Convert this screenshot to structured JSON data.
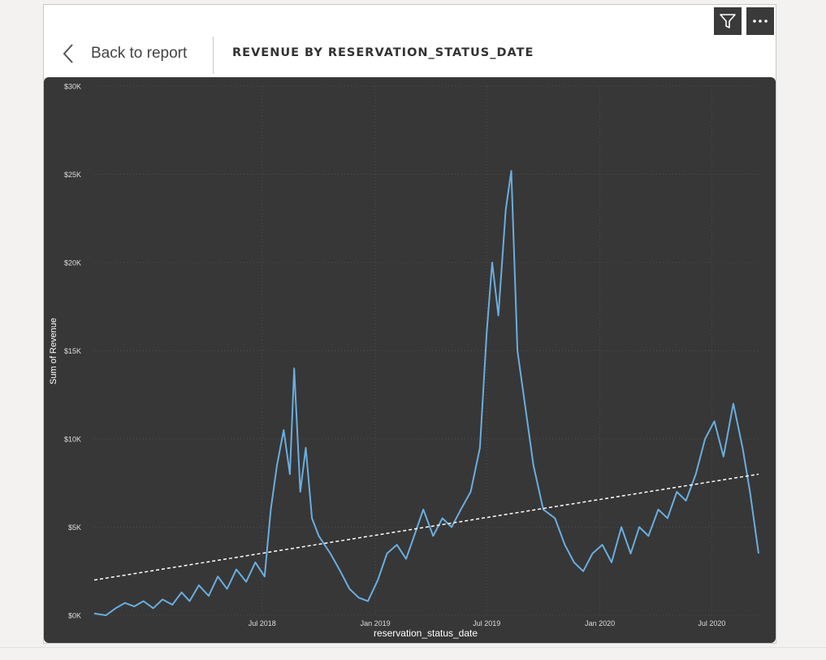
{
  "header": {
    "back_label": "Back to report",
    "title": "REVENUE BY RESERVATION_STATUS_DATE"
  },
  "icons": {
    "back": "chevron-left-icon",
    "filter": "filter-icon",
    "more": "more-options-icon"
  },
  "colors": {
    "line": "#6aaee0",
    "trend": "#ffffff",
    "background": "#373737"
  },
  "chart_data": {
    "type": "line",
    "xlabel": "reservation_status_date",
    "ylabel": "Sum of Revenue",
    "ylim": [
      0,
      30000
    ],
    "xlim": [
      "2017-10-01",
      "2020-09-15"
    ],
    "y_ticks": [
      {
        "value": 0,
        "label": "$0K"
      },
      {
        "value": 5000,
        "label": "$5K"
      },
      {
        "value": 10000,
        "label": "$10K"
      },
      {
        "value": 15000,
        "label": "$15K"
      },
      {
        "value": 20000,
        "label": "$20K"
      },
      {
        "value": 25000,
        "label": "$25K"
      },
      {
        "value": 30000,
        "label": "$30K"
      }
    ],
    "x_ticks": [
      {
        "date": "2018-07-01",
        "label": "Jul 2018"
      },
      {
        "date": "2019-01-01",
        "label": "Jan 2019"
      },
      {
        "date": "2019-07-01",
        "label": "Jul 2019"
      },
      {
        "date": "2020-01-01",
        "label": "Jan 2020"
      },
      {
        "date": "2020-07-01",
        "label": "Jul 2020"
      }
    ],
    "grid": true,
    "trend_line": {
      "start": {
        "date": "2017-10-01",
        "value": 2000
      },
      "end": {
        "date": "2020-09-15",
        "value": 8000
      }
    },
    "series": [
      {
        "values": [
          {
            "date": "2017-10-01",
            "value": 100
          },
          {
            "date": "2017-10-20",
            "value": 0
          },
          {
            "date": "2017-11-05",
            "value": 400
          },
          {
            "date": "2017-11-20",
            "value": 700
          },
          {
            "date": "2017-12-05",
            "value": 500
          },
          {
            "date": "2017-12-20",
            "value": 800
          },
          {
            "date": "2018-01-05",
            "value": 400
          },
          {
            "date": "2018-01-20",
            "value": 900
          },
          {
            "date": "2018-02-05",
            "value": 600
          },
          {
            "date": "2018-02-20",
            "value": 1300
          },
          {
            "date": "2018-03-05",
            "value": 800
          },
          {
            "date": "2018-03-20",
            "value": 1700
          },
          {
            "date": "2018-04-05",
            "value": 1100
          },
          {
            "date": "2018-04-20",
            "value": 2200
          },
          {
            "date": "2018-05-05",
            "value": 1500
          },
          {
            "date": "2018-05-20",
            "value": 2600
          },
          {
            "date": "2018-06-05",
            "value": 1900
          },
          {
            "date": "2018-06-20",
            "value": 3000
          },
          {
            "date": "2018-07-05",
            "value": 2200
          },
          {
            "date": "2018-07-15",
            "value": 6000
          },
          {
            "date": "2018-07-25",
            "value": 8500
          },
          {
            "date": "2018-08-05",
            "value": 10500
          },
          {
            "date": "2018-08-15",
            "value": 8000
          },
          {
            "date": "2018-08-22",
            "value": 14000
          },
          {
            "date": "2018-09-01",
            "value": 7000
          },
          {
            "date": "2018-09-10",
            "value": 9500
          },
          {
            "date": "2018-09-20",
            "value": 5500
          },
          {
            "date": "2018-10-01",
            "value": 4500
          },
          {
            "date": "2018-10-20",
            "value": 3500
          },
          {
            "date": "2018-11-05",
            "value": 2500
          },
          {
            "date": "2018-11-20",
            "value": 1500
          },
          {
            "date": "2018-12-05",
            "value": 1000
          },
          {
            "date": "2018-12-20",
            "value": 800
          },
          {
            "date": "2019-01-05",
            "value": 2000
          },
          {
            "date": "2019-01-20",
            "value": 3500
          },
          {
            "date": "2019-02-05",
            "value": 4000
          },
          {
            "date": "2019-02-20",
            "value": 3200
          },
          {
            "date": "2019-03-05",
            "value": 4500
          },
          {
            "date": "2019-03-20",
            "value": 6000
          },
          {
            "date": "2019-04-05",
            "value": 4500
          },
          {
            "date": "2019-04-20",
            "value": 5500
          },
          {
            "date": "2019-05-05",
            "value": 5000
          },
          {
            "date": "2019-05-20",
            "value": 6000
          },
          {
            "date": "2019-06-05",
            "value": 7000
          },
          {
            "date": "2019-06-20",
            "value": 9500
          },
          {
            "date": "2019-07-01",
            "value": 16000
          },
          {
            "date": "2019-07-10",
            "value": 20000
          },
          {
            "date": "2019-07-20",
            "value": 17000
          },
          {
            "date": "2019-08-01",
            "value": 23000
          },
          {
            "date": "2019-08-10",
            "value": 25200
          },
          {
            "date": "2019-08-20",
            "value": 15000
          },
          {
            "date": "2019-09-01",
            "value": 12000
          },
          {
            "date": "2019-09-15",
            "value": 8500
          },
          {
            "date": "2019-10-01",
            "value": 6000
          },
          {
            "date": "2019-10-20",
            "value": 5500
          },
          {
            "date": "2019-11-05",
            "value": 4000
          },
          {
            "date": "2019-11-20",
            "value": 3000
          },
          {
            "date": "2019-12-05",
            "value": 2500
          },
          {
            "date": "2019-12-20",
            "value": 3500
          },
          {
            "date": "2020-01-05",
            "value": 4000
          },
          {
            "date": "2020-01-20",
            "value": 3000
          },
          {
            "date": "2020-02-05",
            "value": 5000
          },
          {
            "date": "2020-02-20",
            "value": 3500
          },
          {
            "date": "2020-03-05",
            "value": 5000
          },
          {
            "date": "2020-03-20",
            "value": 4500
          },
          {
            "date": "2020-04-05",
            "value": 6000
          },
          {
            "date": "2020-04-20",
            "value": 5500
          },
          {
            "date": "2020-05-05",
            "value": 7000
          },
          {
            "date": "2020-05-20",
            "value": 6500
          },
          {
            "date": "2020-06-05",
            "value": 8000
          },
          {
            "date": "2020-06-20",
            "value": 10000
          },
          {
            "date": "2020-07-05",
            "value": 11000
          },
          {
            "date": "2020-07-20",
            "value": 9000
          },
          {
            "date": "2020-08-05",
            "value": 12000
          },
          {
            "date": "2020-08-20",
            "value": 9500
          },
          {
            "date": "2020-09-01",
            "value": 7000
          },
          {
            "date": "2020-09-15",
            "value": 3500
          }
        ]
      }
    ]
  }
}
